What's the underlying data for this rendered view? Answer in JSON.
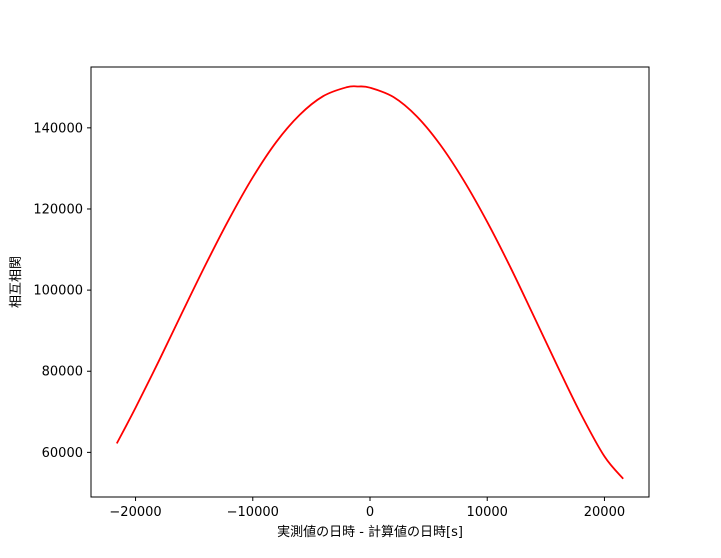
{
  "chart_data": {
    "type": "line",
    "title": "",
    "xlabel": "実測値の日時 - 計算値の日時[s]",
    "ylabel": "相互相関",
    "xlim": [
      -23800,
      23800
    ],
    "ylim": [
      49000,
      155000
    ],
    "grid": false,
    "x_ticks": [
      -20000,
      -10000,
      0,
      10000,
      20000
    ],
    "x_tick_labels": [
      "−20000",
      "−10000",
      "0",
      "10000",
      "20000"
    ],
    "y_ticks": [
      60000,
      80000,
      100000,
      120000,
      140000
    ],
    "y_tick_labels": [
      "60000",
      "80000",
      "100000",
      "120000",
      "140000"
    ],
    "series": [
      {
        "color": "#ff0000",
        "x": [
          -21600,
          -20000,
          -18000,
          -16000,
          -14000,
          -12000,
          -10000,
          -8000,
          -6000,
          -4000,
          -2000,
          -1000,
          0,
          2000,
          4000,
          6000,
          8000,
          10000,
          12000,
          14000,
          16000,
          18000,
          20000,
          21600
        ],
        "y": [
          62200,
          71000,
          82600,
          94600,
          106400,
          117600,
          127800,
          136500,
          143200,
          147800,
          150000,
          150200,
          149900,
          147600,
          142800,
          135800,
          127000,
          116800,
          105500,
          93400,
          81200,
          69400,
          59000,
          53500
        ]
      }
    ]
  }
}
